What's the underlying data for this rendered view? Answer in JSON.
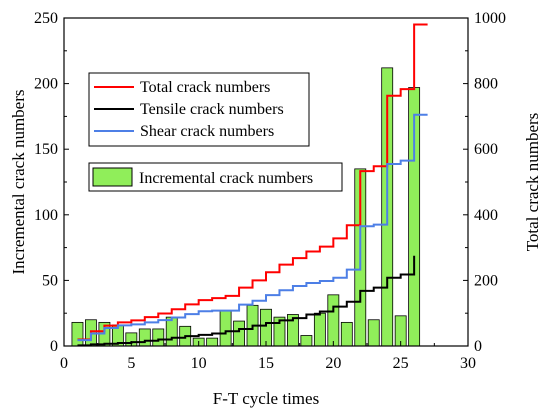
{
  "chart_data": {
    "type": "bar+line",
    "xlabel": "F-T cycle times",
    "ylabel_left": "Incremental crack numbers",
    "ylabel_right": "Total crack numbers",
    "xlim": [
      0,
      30
    ],
    "ylim_left": [
      0,
      250
    ],
    "ylim_right": [
      0,
      1000
    ],
    "x_ticks": [
      0,
      5,
      10,
      15,
      20,
      25,
      30
    ],
    "y_left_ticks": [
      0,
      50,
      100,
      150,
      200,
      250
    ],
    "y_right_ticks": [
      0,
      200,
      400,
      600,
      800,
      1000
    ],
    "grid": false,
    "bars": {
      "name": "Incremental crack numbers",
      "axis": "left",
      "color": "#90ee5a",
      "edge_color": "#000000",
      "x": [
        1,
        2,
        3,
        4,
        5,
        6,
        7,
        8,
        9,
        10,
        11,
        12,
        13,
        14,
        15,
        16,
        17,
        18,
        19,
        20,
        21,
        22,
        23,
        24,
        25,
        26
      ],
      "values": [
        18,
        20,
        18,
        16,
        10,
        13,
        13,
        22,
        15,
        6,
        6,
        27,
        19,
        31,
        28,
        22,
        24,
        8,
        25,
        39,
        18,
        135,
        20,
        212,
        23,
        197
      ]
    },
    "series": [
      {
        "name": "Total crack numbers",
        "axis": "right",
        "color": "#ff0000",
        "step": true,
        "x": [
          1,
          2,
          3,
          4,
          5,
          6,
          7,
          8,
          9,
          10,
          11,
          12,
          13,
          14,
          15,
          16,
          17,
          18,
          19,
          20,
          21,
          22,
          23,
          24,
          25,
          26,
          27
        ],
        "values": [
          20,
          45,
          62,
          72,
          78,
          88,
          99,
          112,
          127,
          140,
          146,
          153,
          178,
          200,
          225,
          248,
          268,
          288,
          303,
          328,
          368,
          533,
          548,
          763,
          783,
          980,
          980
        ]
      },
      {
        "name": "Tensile crack numbers",
        "axis": "right",
        "color": "#000000",
        "step": true,
        "x": [
          1,
          2,
          3,
          4,
          5,
          6,
          7,
          8,
          9,
          10,
          11,
          12,
          13,
          14,
          15,
          16,
          17,
          18,
          19,
          20,
          21,
          22,
          23,
          24,
          25,
          26
        ],
        "values": [
          2,
          5,
          7,
          9,
          12,
          16,
          20,
          25,
          30,
          34,
          38,
          45,
          52,
          62,
          70,
          78,
          85,
          96,
          105,
          120,
          135,
          168,
          178,
          208,
          218,
          275
        ]
      },
      {
        "name": "Shear crack numbers",
        "axis": "right",
        "color": "#4d7fe6",
        "step": true,
        "x": [
          1,
          2,
          3,
          4,
          5,
          6,
          7,
          8,
          9,
          10,
          11,
          12,
          13,
          14,
          15,
          16,
          17,
          18,
          19,
          20,
          21,
          22,
          23,
          24,
          25,
          26,
          27
        ],
        "values": [
          18,
          38,
          55,
          63,
          66,
          72,
          79,
          87,
          97,
          106,
          108,
          108,
          126,
          138,
          155,
          170,
          183,
          192,
          198,
          208,
          233,
          365,
          370,
          555,
          565,
          705,
          705
        ]
      }
    ],
    "legend": {
      "lines_position": "upper-left",
      "bars_position": "middle-left"
    }
  }
}
